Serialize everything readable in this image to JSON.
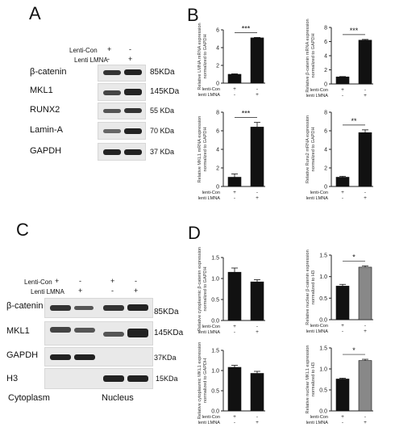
{
  "panels": {
    "A": "A",
    "B": "B",
    "C": "C",
    "D": "D"
  },
  "panelA": {
    "rows": [
      {
        "label": "Lenti-Con",
        "marks": [
          "+",
          "-"
        ]
      },
      {
        "label": "Lenti LMNA",
        "marks": [
          "-",
          "+"
        ]
      }
    ],
    "proteins": [
      "β-catenin",
      "MKL1",
      "RUNX2",
      "Lamin-A",
      "GAPDH"
    ],
    "kda": [
      "85KDa",
      "145KDa",
      "55 KDa",
      "70 KDa",
      "37 KDa"
    ]
  },
  "panelC": {
    "rows": [
      {
        "label": "Lenti-Con",
        "marks": [
          "+",
          "-",
          "+",
          "-"
        ]
      },
      {
        "label": "Lenti LMNA",
        "marks": [
          "-",
          "+",
          "-",
          "+"
        ]
      }
    ],
    "proteins": [
      "β-catenin",
      "MKL1",
      "GAPDH",
      "H3"
    ],
    "kda": [
      "85KDa",
      "145KDa",
      "37KDa",
      "15KDa"
    ],
    "fractions": [
      "Cytoplasm",
      "Nucleus"
    ]
  },
  "chart_data": [
    {
      "type": "bar",
      "panel": "B",
      "ylabel": "Relative LMNA mRNA expression normalized to GAPDH",
      "ylim": [
        0,
        6
      ],
      "yticks": [
        0,
        2,
        4,
        6
      ],
      "categories": [
        "lenti-Con",
        "lenti LMNA"
      ],
      "values": [
        1.0,
        5.1
      ],
      "errors": [
        0.05,
        0.05
      ],
      "significance": "***",
      "x_labels": [
        "lenti-Con",
        "lenti LMNA"
      ],
      "x_marks": [
        [
          "+",
          "-"
        ],
        [
          "-",
          "+"
        ]
      ],
      "colors": [
        "#111111",
        "#111111"
      ]
    },
    {
      "type": "bar",
      "panel": "B",
      "ylabel": "Relative β-catenin mRNA expression normalized to GAPDH",
      "ylim": [
        0,
        8
      ],
      "yticks": [
        0,
        2,
        4,
        6,
        8
      ],
      "categories": [
        "lenti-Con",
        "lenti LMNA"
      ],
      "values": [
        1.0,
        6.2
      ],
      "errors": [
        0.05,
        0.1
      ],
      "significance": "***",
      "x_labels": [
        "lenti-Con",
        "lenti LMNA"
      ],
      "x_marks": [
        [
          "+",
          "-"
        ],
        [
          "-",
          "+"
        ]
      ],
      "colors": [
        "#111111",
        "#111111"
      ]
    },
    {
      "type": "bar",
      "panel": "B",
      "ylabel": "Relative MKL1 mRNA expression normalized to GAPDH",
      "ylim": [
        0,
        8
      ],
      "yticks": [
        0,
        2,
        4,
        6,
        8
      ],
      "categories": [
        "lenti-Con",
        "lenti LMNA"
      ],
      "values": [
        1.0,
        6.4
      ],
      "errors": [
        0.35,
        0.5
      ],
      "significance": "***",
      "x_labels": [
        "lenti-Con",
        "lenti LMNA"
      ],
      "x_marks": [
        [
          "+",
          "-"
        ],
        [
          "-",
          "+"
        ]
      ],
      "colors": [
        "#111111",
        "#111111"
      ]
    },
    {
      "type": "bar",
      "panel": "B",
      "ylabel": "Relative Runx2 mRNA expression normalized to GAPDH",
      "ylim": [
        0,
        8
      ],
      "yticks": [
        0,
        2,
        4,
        6,
        8
      ],
      "categories": [
        "lenti-Con",
        "lenti LMNA"
      ],
      "values": [
        1.0,
        5.8
      ],
      "errors": [
        0.1,
        0.3
      ],
      "significance": "**",
      "x_labels": [
        "lenti-Con",
        "lenti LMNA"
      ],
      "x_marks": [
        [
          "+",
          "-"
        ],
        [
          "-",
          "+"
        ]
      ],
      "colors": [
        "#111111",
        "#111111"
      ]
    },
    {
      "type": "bar",
      "panel": "D",
      "ylabel": "Relative cytoplasmic β-catenin expression normalized to GAPDH",
      "ylim": [
        0,
        1.5
      ],
      "yticks": [
        0.0,
        0.5,
        1.0,
        1.5
      ],
      "categories": [
        "lenti-Con",
        "lenti LMNA"
      ],
      "values": [
        1.15,
        0.92
      ],
      "errors": [
        0.1,
        0.05
      ],
      "significance": "",
      "x_labels": [
        "lenti-Con",
        "lenti LMNA"
      ],
      "x_marks": [
        [
          "+",
          "-"
        ],
        [
          "-",
          "+"
        ]
      ],
      "colors": [
        "#111111",
        "#111111"
      ]
    },
    {
      "type": "bar",
      "panel": "D",
      "ylabel": "Relative nuclear β-catenin expression normalized to H3",
      "ylim": [
        0,
        1.5
      ],
      "yticks": [
        0.0,
        0.5,
        1.0,
        1.5
      ],
      "categories": [
        "lenti-Con",
        "lenti LMNA"
      ],
      "values": [
        0.78,
        1.22
      ],
      "errors": [
        0.04,
        0.03
      ],
      "significance": "*",
      "x_labels": [
        "lenti-Con",
        "lenti LMNA"
      ],
      "x_marks": [
        [
          "+",
          "-"
        ],
        [
          "-",
          "+"
        ]
      ],
      "colors": [
        "#111111",
        "#888888"
      ]
    },
    {
      "type": "bar",
      "panel": "D",
      "ylabel": "Relative cytoplasmic MKL1 expression normalized to GAPDH",
      "ylim": [
        0,
        1.5
      ],
      "yticks": [
        0.0,
        0.5,
        1.0,
        1.5
      ],
      "categories": [
        "lenti-Con",
        "lenti LMNA"
      ],
      "values": [
        1.08,
        0.93
      ],
      "errors": [
        0.05,
        0.05
      ],
      "significance": "",
      "x_labels": [
        "lenti-Con",
        "lenti LMNA"
      ],
      "x_marks": [
        [
          "+",
          "-"
        ],
        [
          "-",
          "+"
        ]
      ],
      "colors": [
        "#111111",
        "#111111"
      ]
    },
    {
      "type": "bar",
      "panel": "D",
      "ylabel": "Relative nuclear MKL1 expression normalized to H3",
      "ylim": [
        0,
        1.5
      ],
      "yticks": [
        0.0,
        0.5,
        1.0,
        1.5
      ],
      "categories": [
        "lenti-Con",
        "lenti LMNA"
      ],
      "values": [
        0.76,
        1.2
      ],
      "errors": [
        0.02,
        0.03
      ],
      "significance": "*",
      "x_labels": [
        "lenti-Con",
        "lenti LMNA"
      ],
      "x_marks": [
        [
          "+",
          "-"
        ],
        [
          "-",
          "+"
        ]
      ],
      "colors": [
        "#111111",
        "#888888"
      ]
    }
  ]
}
